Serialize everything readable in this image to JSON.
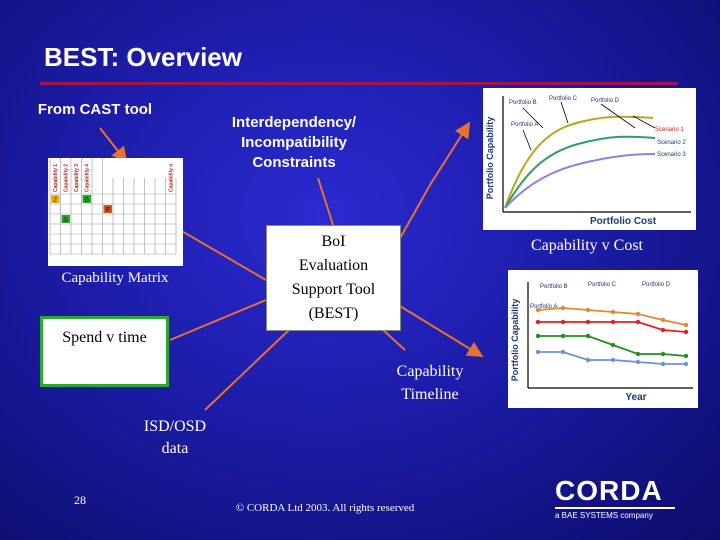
{
  "slide": {
    "title": "BEST: Overview",
    "page_number": "28",
    "footer": "© CORDA Ltd 2003. All rights reserved"
  },
  "labels": {
    "from_cast": "From CAST tool",
    "interdependency": "Interdependency/\nIncompatibility\nConstraints",
    "capability_matrix": "Capability Matrix",
    "spend_v_time": "Spend v time",
    "center": "BoI\nEvaluation\nSupport Tool\n(BEST)",
    "capability_v_cost": "Capability v Cost",
    "capability_timeline": "Capability\nTimeline",
    "isd_osd": "ISD/OSD\ndata"
  },
  "matrix": {
    "columns": [
      "Capability 1",
      "Capability 2",
      "Capability 3",
      "Capability 4",
      "Capability n"
    ],
    "cells": [
      {
        "row": 1,
        "col": 0,
        "text": "2",
        "color": "#f0b000"
      },
      {
        "row": 1,
        "col": 3,
        "text": "G",
        "color": "#2ea52e"
      },
      {
        "row": 2,
        "col": 5,
        "text": "R",
        "color": "#e05010"
      },
      {
        "row": 3,
        "col": 1,
        "text": "G",
        "color": "#2ea52e"
      }
    ]
  },
  "cost_chart": {
    "ylabel": "Portfolio Capability",
    "xlabel": "Portfolio Cost",
    "portfolios": [
      "Portfolio B",
      "Portfolio C",
      "Portfolio D",
      "Portfolio A"
    ],
    "scenarios": [
      "Scenario 1",
      "Scenario 2",
      "Scenario 3"
    ],
    "colors": [
      "#b8a820",
      "#30a060",
      "#9080e0"
    ]
  },
  "timeline_chart": {
    "ylabel": "Portfolio Capability",
    "xlabel": "Year",
    "portfolios": [
      "Portfolio B",
      "Portfolio C",
      "Portfolio D",
      "Portfolio A"
    ],
    "colors": {
      "a": "#e08a30",
      "b": "#e02020",
      "c": "#209020",
      "d": "#7090d8"
    }
  },
  "logo": {
    "name": "CORDA",
    "tagline": "a BAE SYSTEMS company"
  }
}
